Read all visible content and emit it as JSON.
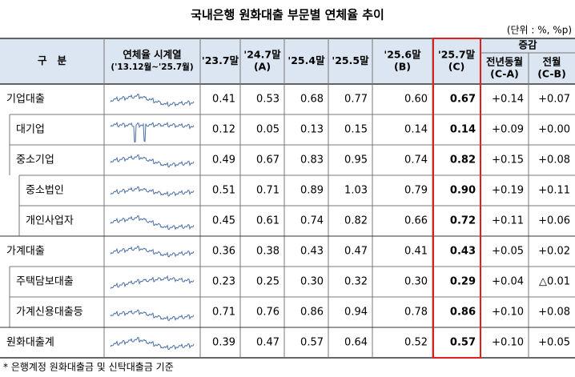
{
  "header": {
    "title": "국내은행 원화대출 부문별 연체율 추이",
    "unit": "(단위 : %, %p)"
  },
  "table": {
    "columns": [
      [
        "구   분"
      ],
      [
        "연체율 시계열",
        "('13.12월~'25.7월)"
      ],
      [
        "'23.7말"
      ],
      [
        "'24.7말",
        "(A)"
      ],
      [
        "'25.4말"
      ],
      [
        "'25.5말"
      ],
      [
        "'25.6말",
        "(B)"
      ],
      [
        "'25.7말",
        "(C)"
      ],
      [
        "전년동월",
        "(C-A)"
      ],
      [
        "전월",
        "(C-B)"
      ]
    ],
    "group": "증감",
    "rows": [
      {
        "label": "기업대출",
        "values": [
          "0.41",
          "0.53",
          "0.68",
          "0.77",
          "0.60",
          "0.67",
          "+0.14",
          "+0.07"
        ]
      },
      {
        "label": "대기업",
        "values": [
          "0.12",
          "0.05",
          "0.13",
          "0.15",
          "0.14",
          "0.14",
          "+0.09",
          "+0.00"
        ]
      },
      {
        "label": "중소기업",
        "values": [
          "0.49",
          "0.67",
          "0.83",
          "0.95",
          "0.74",
          "0.82",
          "+0.15",
          "+0.08"
        ]
      },
      {
        "label": "중소법인",
        "values": [
          "0.51",
          "0.71",
          "0.89",
          "1.03",
          "0.79",
          "0.90",
          "+0.19",
          "+0.11"
        ]
      },
      {
        "label": "개인사업자",
        "values": [
          "0.45",
          "0.61",
          "0.74",
          "0.82",
          "0.66",
          "0.72",
          "+0.11",
          "+0.06"
        ]
      },
      {
        "label": "가계대출",
        "values": [
          "0.36",
          "0.38",
          "0.43",
          "0.47",
          "0.41",
          "0.43",
          "+0.05",
          "+0.02"
        ]
      },
      {
        "label": "주택담보대출",
        "values": [
          "0.23",
          "0.25",
          "0.30",
          "0.32",
          "0.30",
          "0.29",
          "+0.04",
          "△0.01"
        ]
      },
      {
        "label": "가계신용대출등",
        "values": [
          "0.71",
          "0.76",
          "0.86",
          "0.94",
          "0.78",
          "0.86",
          "+0.10",
          "+0.08"
        ]
      },
      {
        "label": "원화대출계",
        "values": [
          "0.39",
          "0.47",
          "0.57",
          "0.64",
          "0.52",
          "0.57",
          "+0.10",
          "+0.05"
        ]
      }
    ]
  },
  "footnote": "* 은행계정 원화대출금 및 신탁대출금 기준"
}
